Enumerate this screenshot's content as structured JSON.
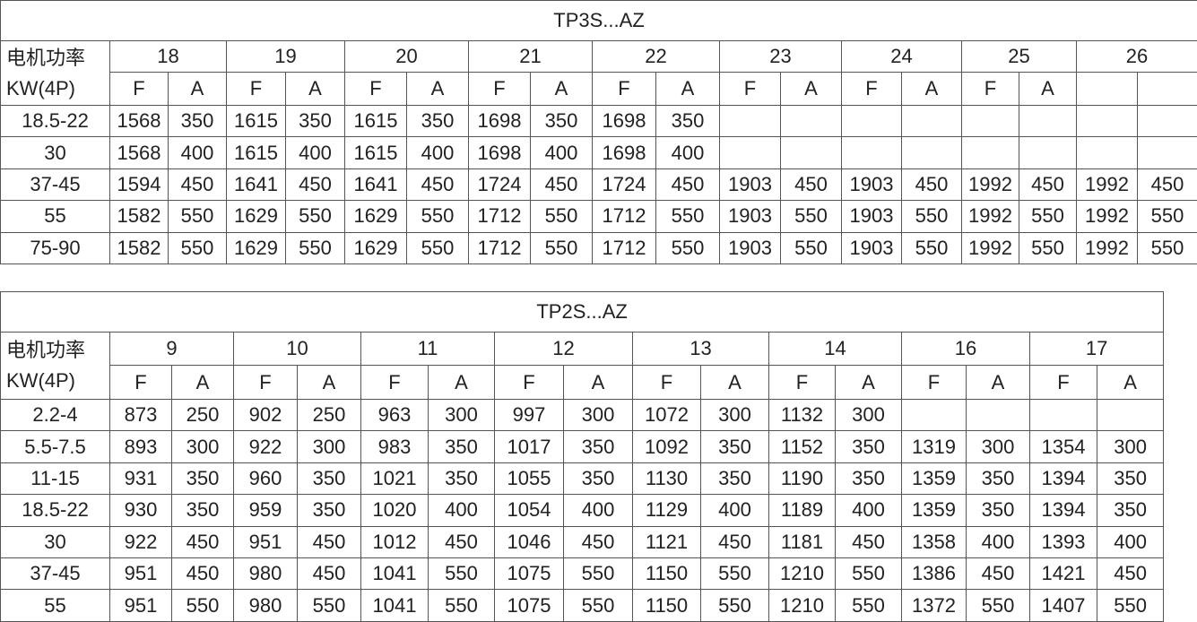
{
  "tables": [
    {
      "title": "TP3S...AZ",
      "header_label": [
        "电机功率",
        "KW(4P)"
      ],
      "groups": [
        "18",
        "19",
        "20",
        "21",
        "22",
        "23",
        "24",
        "25",
        "26"
      ],
      "subheader": [
        "F",
        "A",
        "F",
        "A",
        "F",
        "A",
        "F",
        "A",
        "F",
        "A",
        "F",
        "A",
        "F",
        "A",
        "F",
        "A",
        null,
        null
      ],
      "rows": [
        {
          "label": "18.5-22",
          "cells": [
            1568,
            350,
            1615,
            350,
            1615,
            350,
            1698,
            350,
            1698,
            350,
            null,
            null,
            null,
            null,
            null,
            null,
            null,
            null
          ]
        },
        {
          "label": "30",
          "cells": [
            1568,
            400,
            1615,
            400,
            1615,
            400,
            1698,
            400,
            1698,
            400,
            null,
            null,
            null,
            null,
            null,
            null,
            null,
            null
          ]
        },
        {
          "label": "37-45",
          "cells": [
            1594,
            450,
            1641,
            450,
            1641,
            450,
            1724,
            450,
            1724,
            450,
            1903,
            450,
            1903,
            450,
            1992,
            450,
            1992,
            450
          ]
        },
        {
          "label": "55",
          "cells": [
            1582,
            550,
            1629,
            550,
            1629,
            550,
            1712,
            550,
            1712,
            550,
            1903,
            550,
            1903,
            550,
            1992,
            550,
            1992,
            550
          ]
        },
        {
          "label": "75-90",
          "cells": [
            1582,
            550,
            1629,
            550,
            1629,
            550,
            1712,
            550,
            1712,
            550,
            1903,
            550,
            1903,
            550,
            1992,
            550,
            1992,
            550
          ]
        }
      ]
    },
    {
      "title": "TP2S...AZ",
      "header_label": [
        "电机功率",
        "KW(4P)"
      ],
      "groups": [
        "9",
        "10",
        "11",
        "12",
        "13",
        "14",
        "16",
        "17"
      ],
      "subheader": [
        "F",
        "A",
        "F",
        "A",
        "F",
        "A",
        "F",
        "A",
        "F",
        "A",
        "F",
        "A",
        "F",
        "A",
        "F",
        "A"
      ],
      "rows": [
        {
          "label": "2.2-4",
          "cells": [
            873,
            250,
            902,
            250,
            963,
            300,
            997,
            300,
            1072,
            300,
            1132,
            300,
            null,
            null,
            null,
            null
          ]
        },
        {
          "label": "5.5-7.5",
          "cells": [
            893,
            300,
            922,
            300,
            983,
            350,
            1017,
            350,
            1092,
            350,
            1152,
            350,
            1319,
            300,
            1354,
            300
          ]
        },
        {
          "label": "11-15",
          "cells": [
            931,
            350,
            960,
            350,
            1021,
            350,
            1055,
            350,
            1130,
            350,
            1190,
            350,
            1359,
            350,
            1394,
            350
          ]
        },
        {
          "label": "18.5-22",
          "cells": [
            930,
            350,
            959,
            350,
            1020,
            400,
            1054,
            400,
            1129,
            400,
            1189,
            400,
            1359,
            350,
            1394,
            350
          ]
        },
        {
          "label": "30",
          "cells": [
            922,
            450,
            951,
            450,
            1012,
            450,
            1046,
            450,
            1121,
            450,
            1181,
            450,
            1358,
            400,
            1393,
            400
          ]
        },
        {
          "label": "37-45",
          "cells": [
            951,
            450,
            980,
            450,
            1041,
            550,
            1075,
            550,
            1150,
            550,
            1210,
            550,
            1386,
            450,
            1421,
            450
          ]
        },
        {
          "label": "55",
          "cells": [
            951,
            550,
            980,
            550,
            1041,
            550,
            1075,
            550,
            1150,
            550,
            1210,
            550,
            1372,
            550,
            1407,
            550
          ]
        }
      ]
    }
  ]
}
